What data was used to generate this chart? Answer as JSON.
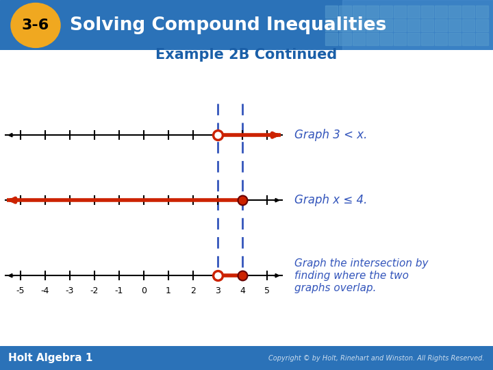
{
  "title": "Solving Compound Inequalities",
  "badge_text": "3-6",
  "subtitle": "Example 2B Continued",
  "header_bg": "#2b72b8",
  "header_grid_color": "#5599cc",
  "badge_color": "#f0a820",
  "badge_text_color": "#000000",
  "title_color": "#ffffff",
  "subtitle_color": "#1a5fa8",
  "body_bg": "#ffffff",
  "graph1_label": "Graph 3 < x.",
  "graph2_label": "Graph x ≤ 4.",
  "graph3_label": "Graph the intersection by\nfinding where the two\ngraphs overlap.",
  "label_color": "#3355bb",
  "highlight_color": "#cc2200",
  "open_circle_fill": "#ffffff",
  "closed_circle_fill": "#cc2200",
  "dashed_line_color": "#3355bb",
  "number_line_color": "#000000",
  "tick_labels": [
    "-5",
    "-4",
    "-3",
    "-2",
    "-1",
    "0",
    "1",
    "2",
    "3",
    "4",
    "5"
  ],
  "tick_values": [
    -5,
    -4,
    -3,
    -2,
    -1,
    0,
    1,
    2,
    3,
    4,
    5
  ],
  "footer_bg": "#2b72b8",
  "footer_left": "Holt Algebra 1",
  "footer_right": "Copyright © by Holt, Rinehart and Winston. All Rights Reserved.",
  "footer_left_color": "#ffffff",
  "footer_right_color": "#ccddee"
}
